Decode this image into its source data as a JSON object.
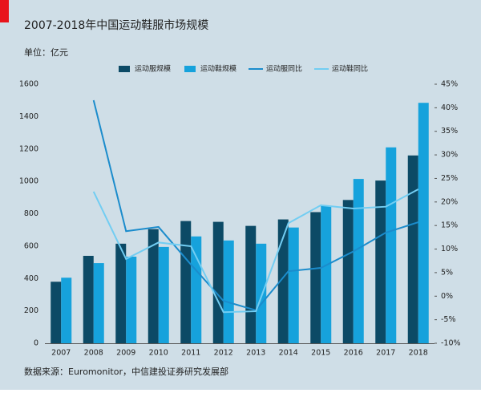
{
  "chart_data": {
    "type": "bar",
    "title": "2007-2018年中国运动鞋服市场规模",
    "subtitle": "单位：亿元",
    "source": "数据来源：Euromonitor，中信建投证券研究发展部",
    "categories": [
      "2007",
      "2008",
      "2009",
      "2010",
      "2011",
      "2012",
      "2013",
      "2014",
      "2015",
      "2016",
      "2017",
      "2018"
    ],
    "series": [
      {
        "name": "运动服规模",
        "type": "bar",
        "color": "#0c4a66",
        "values": [
          380,
          540,
          615,
          705,
          755,
          750,
          725,
          765,
          810,
          885,
          1005,
          1160
        ]
      },
      {
        "name": "运动鞋规模",
        "type": "bar",
        "color": "#16a2dc",
        "values": [
          405,
          495,
          535,
          595,
          660,
          635,
          615,
          715,
          850,
          1015,
          1210,
          1485
        ]
      },
      {
        "name": "运动服同比",
        "type": "line",
        "axis": "y2",
        "color": "#1b8ccc",
        "values": [
          null,
          41.6,
          13.8,
          14.7,
          6.7,
          -1,
          -3,
          5.3,
          6,
          9.5,
          13.5,
          15.7
        ]
      },
      {
        "name": "运动鞋同比",
        "type": "line",
        "axis": "y2",
        "color": "#72cdf2",
        "values": [
          null,
          22.2,
          7.9,
          11.4,
          10.6,
          -3.4,
          -3.2,
          15.5,
          19.3,
          18.6,
          19,
          22.7
        ]
      }
    ],
    "ylim": [
      0,
      1600
    ],
    "yticks": [
      0,
      200,
      400,
      600,
      800,
      1000,
      1200,
      1400,
      1600
    ],
    "y2lim": [
      -10,
      45
    ],
    "y2ticks": [
      {
        "value": -10,
        "label": "-10%"
      },
      {
        "value": -5,
        "label": "-5%"
      },
      {
        "value": 0,
        "label": "0%"
      },
      {
        "value": 5,
        "label": "5%"
      },
      {
        "value": 10,
        "label": "10%"
      },
      {
        "value": 15,
        "label": "15%"
      },
      {
        "value": 20,
        "label": "20%"
      },
      {
        "value": 25,
        "label": "25%"
      },
      {
        "value": 30,
        "label": "30%"
      },
      {
        "value": 35,
        "label": "35%"
      },
      {
        "value": 40,
        "label": "40%"
      },
      {
        "value": 45,
        "label": "45%"
      }
    ],
    "legend": "top",
    "grid": false
  }
}
